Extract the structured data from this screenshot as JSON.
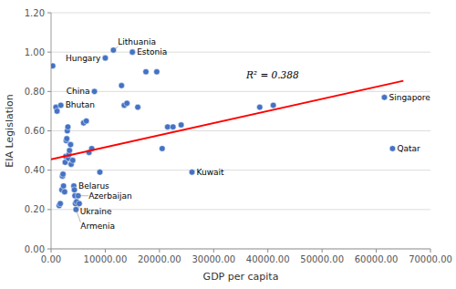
{
  "chart_data": {
    "type": "scatter",
    "x_label": "GDP per capita",
    "y_label": "EIA Legislation",
    "xlim": [
      0,
      70000
    ],
    "ylim": [
      0.0,
      1.2
    ],
    "xticks": [
      {
        "value": 0,
        "label": "0.00"
      },
      {
        "value": 10000,
        "label": "10000.00"
      },
      {
        "value": 20000,
        "label": "20000.00"
      },
      {
        "value": 30000,
        "label": "30000.00"
      },
      {
        "value": 40000,
        "label": "40000.00"
      },
      {
        "value": 50000,
        "label": "50000.00"
      },
      {
        "value": 60000,
        "label": "60000.00"
      },
      {
        "value": 70000,
        "label": "70000.00"
      }
    ],
    "yticks": [
      {
        "value": 0.0,
        "label": "0.00"
      },
      {
        "value": 0.2,
        "label": "0.20"
      },
      {
        "value": 0.4,
        "label": "0.40"
      },
      {
        "value": 0.6,
        "label": "0.60"
      },
      {
        "value": 0.8,
        "label": "0.80"
      },
      {
        "value": 1.0,
        "label": "1.00"
      },
      {
        "value": 1.2,
        "label": "1.20"
      }
    ],
    "grid": "y",
    "series": [
      {
        "type": "scatter",
        "color": "#4472C4",
        "marker": "circle",
        "x": [
          300,
          900,
          1100,
          1500,
          1700,
          2000,
          2100,
          2200,
          2300,
          2500,
          2600,
          2700,
          2800,
          2900,
          3000,
          3100,
          3200,
          3300,
          3400,
          3600,
          3700,
          4000,
          4200,
          4300,
          4400,
          4500,
          4600,
          4700,
          5000,
          5200,
          6000,
          6500,
          7000,
          7500,
          8000,
          1800,
          9000,
          10000,
          11500,
          13000,
          13500,
          14000,
          15000,
          16000,
          17500,
          19500,
          20500,
          21500,
          22500,
          24000,
          26000,
          38500,
          41000,
          61500,
          63000
        ],
        "values": [
          0.93,
          0.72,
          0.7,
          0.22,
          0.23,
          0.3,
          0.37,
          0.38,
          0.32,
          0.29,
          0.44,
          0.47,
          0.55,
          0.56,
          0.6,
          0.62,
          0.46,
          0.48,
          0.5,
          0.53,
          0.43,
          0.45,
          0.32,
          0.3,
          0.27,
          0.23,
          0.2,
          0.24,
          0.27,
          0.23,
          0.64,
          0.65,
          0.49,
          0.51,
          0.8,
          0.73,
          0.39,
          0.97,
          1.01,
          0.83,
          0.73,
          0.74,
          1.0,
          0.72,
          0.9,
          0.9,
          0.51,
          0.62,
          0.62,
          0.63,
          0.39,
          0.72,
          0.73,
          0.77,
          0.51
        ],
        "point_labels": [
          null,
          null,
          null,
          null,
          null,
          null,
          null,
          null,
          null,
          null,
          null,
          null,
          null,
          null,
          null,
          null,
          null,
          null,
          null,
          null,
          null,
          null,
          "Belarus",
          null,
          "Azerbaijan",
          "Ukraine",
          "Armenia",
          null,
          null,
          null,
          null,
          null,
          null,
          null,
          "China",
          "Bhutan",
          null,
          "Hungary",
          "Lithuania",
          null,
          null,
          null,
          "Estonia",
          null,
          null,
          null,
          null,
          null,
          null,
          null,
          "Kuwait",
          null,
          null,
          "Singapore",
          "Qatar"
        ]
      },
      {
        "type": "line",
        "color": "red",
        "line_style": "solid",
        "x": [
          0,
          65000
        ],
        "values": [
          0.455,
          0.85475
        ]
      }
    ],
    "annotations": [
      {
        "text": "R² = 0.388",
        "x": 36000,
        "y": 0.865
      }
    ]
  }
}
